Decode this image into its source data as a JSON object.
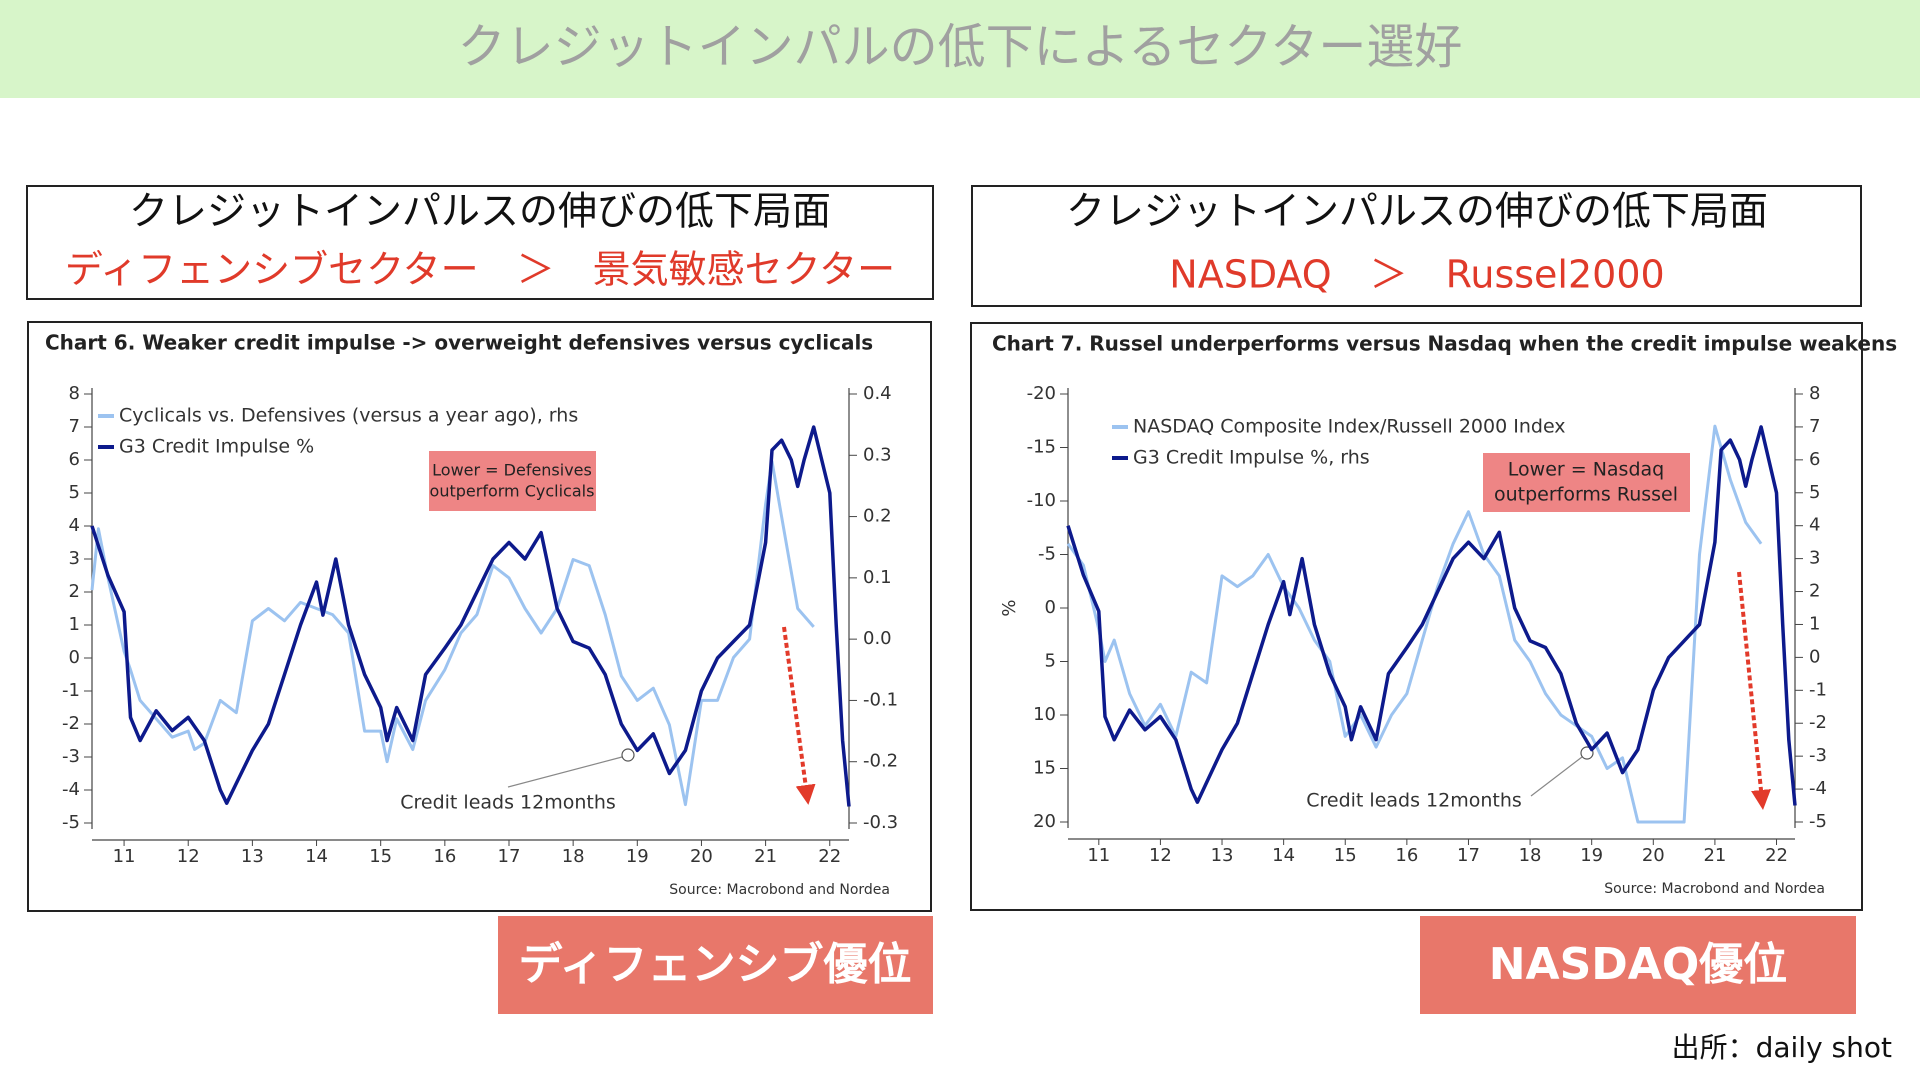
{
  "header": {
    "title": "クレジットインパルの低下によるセクター選好"
  },
  "panels": [
    {
      "heading": "クレジットインパルスの伸びの低下局面",
      "comparison": "ディフェンシブセクター　＞　景気敏感セクター",
      "badge": "ディフェンシブ優位"
    },
    {
      "heading": "クレジットインパルスの伸びの低下局面",
      "comparison": "NASDAQ　＞　Russel2000",
      "badge": "NASDAQ優位"
    }
  ],
  "chart_data": [
    {
      "type": "line",
      "title": "Chart 6. Weaker credit impulse -> overweight defensives versus cyclicals",
      "xlim": [
        10.5,
        22.3
      ],
      "xticks": [
        11,
        12,
        13,
        14,
        15,
        16,
        17,
        18,
        19,
        20,
        21,
        22
      ],
      "ylim": [
        -5,
        8
      ],
      "yticks": [
        -5,
        -4,
        -3,
        -2,
        -1,
        0,
        1,
        2,
        3,
        4,
        5,
        6,
        7,
        8
      ],
      "y2lim": [
        -0.3,
        0.4
      ],
      "y2ticks": [
        -0.3,
        -0.2,
        -0.1,
        {
          "value": 0,
          "label": "0.0"
        },
        0.1,
        0.2,
        0.3,
        0.4
      ],
      "legend_corner": "top-left",
      "series": [
        {
          "name": "Cyclicals vs. Defensives (versus a year ago), rhs",
          "color": "#9cc3f0",
          "axis": "y2",
          "x": [
            10.5,
            10.6,
            10.75,
            11,
            11.1,
            11.25,
            11.5,
            11.75,
            12,
            12.1,
            12.25,
            12.5,
            12.75,
            13,
            13.25,
            13.5,
            13.75,
            14,
            14.25,
            14.5,
            14.75,
            15,
            15.1,
            15.25,
            15.5,
            15.7,
            16,
            16.25,
            16.5,
            16.75,
            17,
            17.25,
            17.5,
            17.75,
            18,
            18.25,
            18.5,
            18.75,
            19,
            19.25,
            19.5,
            19.75,
            20,
            20.25,
            20.5,
            20.75,
            21,
            21.1,
            21.25,
            21.5,
            21.75
          ],
          "values": [
            0.08,
            0.18,
            0.1,
            -0.02,
            -0.05,
            -0.1,
            -0.13,
            -0.16,
            -0.15,
            -0.18,
            -0.17,
            -0.1,
            -0.12,
            0.03,
            0.05,
            0.03,
            0.06,
            0.05,
            0.04,
            0.01,
            -0.15,
            -0.15,
            -0.2,
            -0.13,
            -0.18,
            -0.1,
            -0.05,
            0.01,
            0.04,
            0.12,
            0.1,
            0.05,
            0.01,
            0.05,
            0.13,
            0.12,
            0.04,
            -0.06,
            -0.1,
            -0.08,
            -0.14,
            -0.27,
            -0.1,
            -0.1,
            -0.03,
            0,
            0.22,
            0.29,
            0.2,
            0.05,
            0.02
          ]
        },
        {
          "name": "G3 Credit Impulse %",
          "color": "#0d1a8c",
          "x": [
            10.5,
            10.75,
            11,
            11.1,
            11.25,
            11.5,
            11.75,
            12,
            12.25,
            12.5,
            12.6,
            12.75,
            13,
            13.25,
            13.5,
            13.75,
            14,
            14.1,
            14.3,
            14.5,
            14.75,
            15,
            15.1,
            15.25,
            15.5,
            15.7,
            16,
            16.25,
            16.5,
            16.75,
            17,
            17.25,
            17.5,
            17.75,
            18,
            18.25,
            18.5,
            18.75,
            19,
            19.25,
            19.5,
            19.75,
            20,
            20.25,
            20.5,
            20.75,
            21,
            21.1,
            21.25,
            21.4,
            21.5,
            21.6,
            21.75,
            22,
            22.1,
            22.2,
            22.3
          ],
          "values": [
            4,
            2.5,
            1.4,
            -1.8,
            -2.5,
            -1.6,
            -2.2,
            -1.8,
            -2.5,
            -4,
            -4.4,
            -3.8,
            -2.8,
            -2,
            -0.5,
            1,
            2.3,
            1.3,
            3,
            1,
            -0.5,
            -1.5,
            -2.5,
            -1.5,
            -2.5,
            -0.5,
            0.3,
            1,
            2,
            3,
            3.5,
            3,
            3.8,
            1.5,
            0.5,
            0.3,
            -0.5,
            -2,
            -2.8,
            -2.3,
            -3.5,
            -2.8,
            -1,
            0,
            0.5,
            1,
            3.5,
            6.3,
            6.6,
            6,
            5.2,
            6,
            7,
            5,
            1,
            -2.5,
            -4.5
          ]
        }
      ],
      "note": [
        "Lower = Defensives",
        "outperform Cyclicals"
      ],
      "callout": "Credit leads 12months",
      "source": "Source: Macrobond and Nordea"
    },
    {
      "type": "line",
      "title": "Chart 7. Russel underperforms versus Nasdaq when the credit impulse weakens",
      "ylabel": "%",
      "xlim": [
        10.5,
        22.3
      ],
      "xticks": [
        11,
        12,
        13,
        14,
        15,
        16,
        17,
        18,
        19,
        20,
        21,
        22
      ],
      "ylim": [
        20,
        -20
      ],
      "yticks": [
        -20,
        -15,
        -10,
        -5,
        0,
        5,
        10,
        15,
        20
      ],
      "y2lim": [
        -5,
        8
      ],
      "y2ticks": [
        -5,
        -4,
        -3,
        -2,
        -1,
        0,
        1,
        2,
        3,
        4,
        5,
        6,
        7,
        8
      ],
      "legend_corner": "top-left",
      "series": [
        {
          "name": "NASDAQ Composite Index/Russell 2000 Index",
          "color": "#9cc3f0",
          "x": [
            10.5,
            10.75,
            11,
            11.1,
            11.25,
            11.5,
            11.75,
            12,
            12.25,
            12.5,
            12.75,
            13,
            13.25,
            13.5,
            13.75,
            14,
            14.25,
            14.5,
            14.75,
            15,
            15.25,
            15.5,
            15.75,
            16,
            16.25,
            16.5,
            16.75,
            17,
            17.25,
            17.5,
            17.75,
            18,
            18.25,
            18.5,
            18.75,
            19,
            19.25,
            19.5,
            19.75,
            20,
            20.5,
            20.75,
            21,
            21.25,
            21.5,
            21.75
          ],
          "values": [
            -6,
            -4,
            2,
            5,
            3,
            8,
            11,
            9,
            12,
            6,
            7,
            -3,
            -2,
            -3,
            -5,
            -2,
            0,
            3,
            5,
            12,
            10,
            13,
            10,
            8,
            3,
            -2,
            -6,
            -9,
            -5,
            -3,
            3,
            5,
            8,
            10,
            11,
            12,
            15,
            14,
            20,
            20,
            20,
            -5,
            -17,
            -12,
            -8,
            -6
          ]
        },
        {
          "name": "G3 Credit Impulse %, rhs",
          "color": "#0d1a8c",
          "axis": "y2",
          "x": [
            10.5,
            10.75,
            11,
            11.1,
            11.25,
            11.5,
            11.75,
            12,
            12.25,
            12.5,
            12.6,
            12.75,
            13,
            13.25,
            13.5,
            13.75,
            14,
            14.1,
            14.3,
            14.5,
            14.75,
            15,
            15.1,
            15.25,
            15.5,
            15.7,
            16,
            16.25,
            16.5,
            16.75,
            17,
            17.25,
            17.5,
            17.75,
            18,
            18.25,
            18.5,
            18.75,
            19,
            19.25,
            19.5,
            19.75,
            20,
            20.25,
            20.5,
            20.75,
            21,
            21.1,
            21.25,
            21.4,
            21.5,
            21.6,
            21.75,
            22,
            22.1,
            22.2,
            22.3
          ],
          "values": [
            4,
            2.5,
            1.4,
            -1.8,
            -2.5,
            -1.6,
            -2.2,
            -1.8,
            -2.5,
            -4,
            -4.4,
            -3.8,
            -2.8,
            -2,
            -0.5,
            1,
            2.3,
            1.3,
            3,
            1,
            -0.5,
            -1.5,
            -2.5,
            -1.5,
            -2.5,
            -0.5,
            0.3,
            1,
            2,
            3,
            3.5,
            3,
            3.8,
            1.5,
            0.5,
            0.3,
            -0.5,
            -2,
            -2.8,
            -2.3,
            -3.5,
            -2.8,
            -1,
            0,
            0.5,
            1,
            3.5,
            6.3,
            6.6,
            6,
            5.2,
            6,
            7,
            5,
            1,
            -2.5,
            -4.5
          ]
        }
      ],
      "note": [
        "Lower = Nasdaq",
        "outperforms Russel"
      ],
      "callout": "Credit leads 12months",
      "source": "Source: Macrobond and Nordea"
    }
  ],
  "footer": {
    "source": "出所：daily shot"
  }
}
